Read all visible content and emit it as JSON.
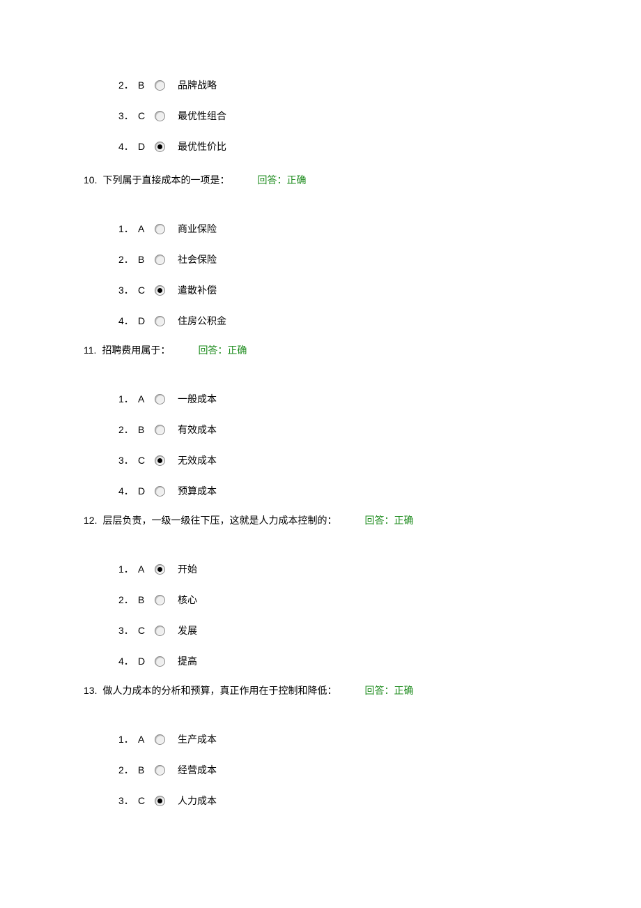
{
  "colors": {
    "text": "#000000",
    "feedback": "#1e8c1e",
    "background": "#ffffff",
    "radio_border": "#888888",
    "radio_bg": "#efefef",
    "radio_dot": "#000000"
  },
  "typography": {
    "body_family": "SimSun",
    "body_size_pt": 10.5,
    "number_family": "Arial"
  },
  "partial_question_options": [
    {
      "num": "2．",
      "letter": "B",
      "selected": false,
      "text": "品牌战略"
    },
    {
      "num": "3．",
      "letter": "C",
      "selected": false,
      "text": "最优性组合"
    },
    {
      "num": "4．",
      "letter": "D",
      "selected": true,
      "text": "最优性价比"
    }
  ],
  "questions": [
    {
      "num": "10.",
      "text": "下列属于直接成本的一项是：",
      "feedback": "回答：正确",
      "options": [
        {
          "num": "1．",
          "letter": "A",
          "selected": false,
          "text": "商业保险"
        },
        {
          "num": "2．",
          "letter": "B",
          "selected": false,
          "text": "社会保险"
        },
        {
          "num": "3．",
          "letter": "C",
          "selected": true,
          "text": "遣散补偿"
        },
        {
          "num": "4．",
          "letter": "D",
          "selected": false,
          "text": "住房公积金"
        }
      ]
    },
    {
      "num": "11.",
      "text": "招聘费用属于：",
      "feedback": "回答：正确",
      "options": [
        {
          "num": "1．",
          "letter": "A",
          "selected": false,
          "text": "一般成本"
        },
        {
          "num": "2．",
          "letter": "B",
          "selected": false,
          "text": "有效成本"
        },
        {
          "num": "3．",
          "letter": "C",
          "selected": true,
          "text": "无效成本"
        },
        {
          "num": "4．",
          "letter": "D",
          "selected": false,
          "text": "预算成本"
        }
      ]
    },
    {
      "num": "12.",
      "text": "层层负责，一级一级往下压，这就是人力成本控制的：",
      "feedback": "回答：正确",
      "options": [
        {
          "num": "1．",
          "letter": "A",
          "selected": true,
          "text": "开始"
        },
        {
          "num": "2．",
          "letter": "B",
          "selected": false,
          "text": "核心"
        },
        {
          "num": "3．",
          "letter": "C",
          "selected": false,
          "text": "发展"
        },
        {
          "num": "4．",
          "letter": "D",
          "selected": false,
          "text": "提高"
        }
      ]
    },
    {
      "num": "13.",
      "text": "做人力成本的分析和预算，真正作用在于控制和降低：",
      "feedback": "回答：正确",
      "options": [
        {
          "num": "1．",
          "letter": "A",
          "selected": false,
          "text": "生产成本"
        },
        {
          "num": "2．",
          "letter": "B",
          "selected": false,
          "text": "经营成本"
        },
        {
          "num": "3．",
          "letter": "C",
          "selected": true,
          "text": "人力成本"
        }
      ]
    }
  ]
}
